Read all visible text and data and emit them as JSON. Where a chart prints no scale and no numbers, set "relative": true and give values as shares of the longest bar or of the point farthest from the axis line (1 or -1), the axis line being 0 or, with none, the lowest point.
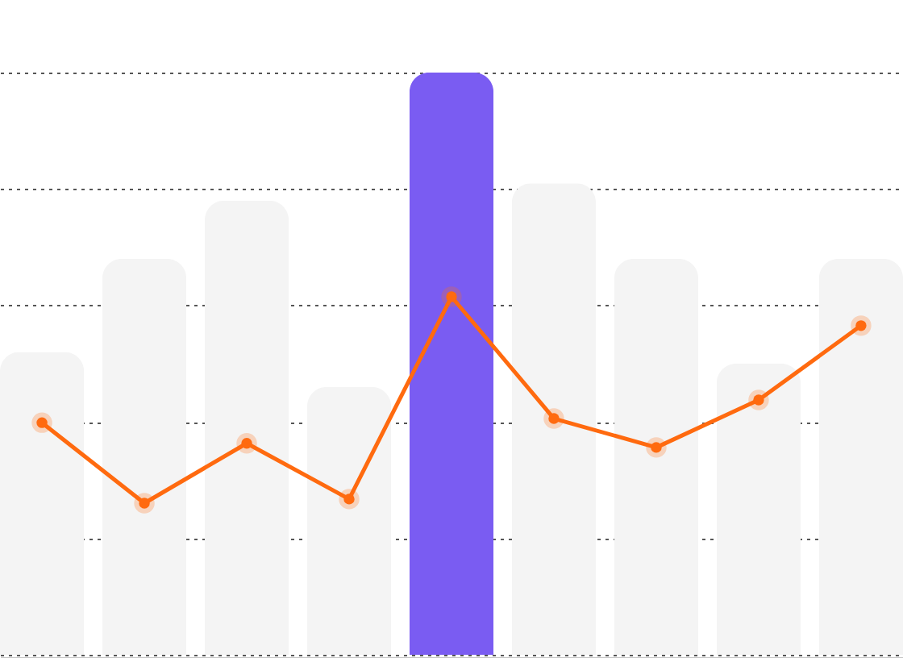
{
  "chart_data": [
    {
      "type": "bar",
      "relative": true,
      "grid": "y",
      "categories": [
        null,
        null,
        null,
        null,
        null,
        null,
        null,
        null,
        null
      ],
      "colors": [
        "#f4f4f4",
        "#f4f4f4",
        "#f4f4f4",
        "#f4f4f4",
        "#7a5cf2",
        "#f4f4f4",
        "#f4f4f4",
        "#f4f4f4",
        "#f4f4f4"
      ],
      "values": [
        0.52,
        0.68,
        0.78,
        0.46,
        1,
        0.81,
        0.68,
        0.5,
        0.68
      ]
    },
    {
      "type": "line",
      "relative": true,
      "categories": [
        null,
        null,
        null,
        null,
        null,
        null,
        null,
        null,
        null
      ],
      "color": "#ff6a0f",
      "marker": "circle",
      "line_style": "solid",
      "values": [
        0.39,
        0,
        0.29,
        0.02,
        1,
        0.41,
        0.27,
        0.5,
        0.86
      ]
    }
  ]
}
